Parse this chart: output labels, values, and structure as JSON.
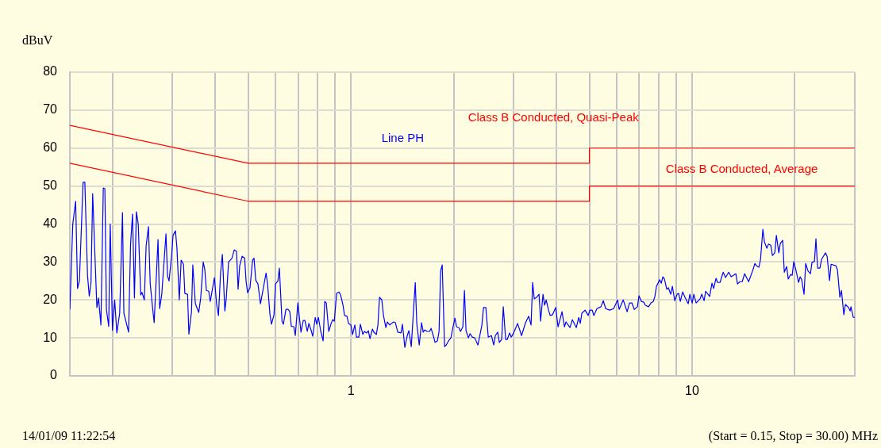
{
  "chart_data": {
    "type": "line",
    "ylabel": "dBuV",
    "annotations": [
      "14/01/09 11:22:54",
      "(Start = 0.15, Stop = 30.00) MHz"
    ],
    "log": "x",
    "grid": true,
    "legend": false,
    "marker": "none",
    "line_style": "solid",
    "xlim": [
      0.15,
      30
    ],
    "xticks": [
      {
        "value": 0.2,
        "label": null
      },
      {
        "value": 0.3,
        "label": null
      },
      {
        "value": 0.4,
        "label": null
      },
      {
        "value": 0.5,
        "label": null
      },
      {
        "value": 0.6,
        "label": null
      },
      {
        "value": 0.7,
        "label": null
      },
      {
        "value": 0.8,
        "label": null
      },
      {
        "value": 0.9,
        "label": null
      },
      1,
      {
        "value": 2,
        "label": null
      },
      {
        "value": 3,
        "label": null
      },
      {
        "value": 4,
        "label": null
      },
      {
        "value": 5,
        "label": null
      },
      {
        "value": 6,
        "label": null
      },
      {
        "value": 7,
        "label": null
      },
      {
        "value": 8,
        "label": null
      },
      {
        "value": 9,
        "label": null
      },
      10,
      {
        "value": 20,
        "label": null
      },
      {
        "value": 30,
        "label": null
      }
    ],
    "ylim": [
      0,
      80
    ],
    "yticks": [
      0,
      10,
      20,
      30,
      40,
      50,
      60,
      70,
      80
    ],
    "series": [
      {
        "name": "Line PH",
        "color": "#0000ff",
        "x": [
          0.15,
          0.153,
          0.156,
          0.158,
          0.16,
          0.164,
          0.166,
          0.169,
          0.171,
          0.173,
          0.175,
          0.18,
          0.182,
          0.185,
          0.188,
          0.19,
          0.192,
          0.195,
          0.197,
          0.2,
          0.203,
          0.206,
          0.21,
          0.214,
          0.216,
          0.223,
          0.226,
          0.229,
          0.232,
          0.235,
          0.238,
          0.242,
          0.244,
          0.248,
          0.251,
          0.255,
          0.258,
          0.262,
          0.265,
          0.272,
          0.275,
          0.279,
          0.287,
          0.29,
          0.293,
          0.298,
          0.301,
          0.306,
          0.309,
          0.314,
          0.318,
          0.323,
          0.326,
          0.332,
          0.335,
          0.341,
          0.344,
          0.35,
          0.358,
          0.363,
          0.369,
          0.373,
          0.377,
          0.383,
          0.387,
          0.398,
          0.404,
          0.409,
          0.415,
          0.42,
          0.427,
          0.431,
          0.438,
          0.448,
          0.455,
          0.462,
          0.467,
          0.472,
          0.48,
          0.488,
          0.493,
          0.498,
          0.506,
          0.515,
          0.52,
          0.526,
          0.534,
          0.543,
          0.549,
          0.564,
          0.57,
          0.579,
          0.585,
          0.595,
          0.601,
          0.611,
          0.617,
          0.628,
          0.634,
          0.645,
          0.655,
          0.662,
          0.669,
          0.68,
          0.687,
          0.699,
          0.714,
          0.725,
          0.733,
          0.745,
          0.753,
          0.765,
          0.773,
          0.786,
          0.794,
          0.803,
          0.816,
          0.829,
          0.838,
          0.847,
          0.861,
          0.875,
          0.884,
          0.894,
          0.908,
          0.923,
          0.933,
          0.948,
          0.958,
          0.974,
          0.984,
          1.0,
          1.011,
          1.027,
          1.038,
          1.055,
          1.066,
          1.084,
          1.095,
          1.113,
          1.125,
          1.137,
          1.156,
          1.168,
          1.187,
          1.2,
          1.213,
          1.232,
          1.246,
          1.266,
          1.279,
          1.3,
          1.314,
          1.335,
          1.35,
          1.372,
          1.402,
          1.416,
          1.439,
          1.463,
          1.479,
          1.503,
          1.544,
          1.56,
          1.586,
          1.611,
          1.629,
          1.646,
          1.673,
          1.7,
          1.718,
          1.746,
          1.765,
          1.793,
          1.813,
          1.832,
          1.852,
          1.882,
          1.902,
          1.933,
          1.964,
          1.986,
          2.018,
          2.04,
          2.073,
          2.095,
          2.129,
          2.152,
          2.175,
          2.21,
          2.234,
          2.27,
          2.307,
          2.357,
          2.421,
          2.447,
          2.486,
          2.527,
          2.581,
          2.623,
          2.651,
          2.694,
          2.723,
          2.767,
          2.797,
          2.842,
          2.873,
          2.919,
          2.951,
          2.999,
          3.08,
          3.164,
          3.25,
          3.32,
          3.374,
          3.41,
          3.447,
          3.503,
          3.56,
          3.598,
          3.657,
          3.696,
          3.736,
          3.796,
          3.837,
          3.899,
          3.984,
          4.048,
          4.158,
          4.226,
          4.271,
          4.387,
          4.458,
          4.579,
          4.653,
          4.703,
          4.754,
          4.857,
          4.962,
          5.015,
          5.096,
          5.152,
          5.263,
          5.406,
          5.494,
          5.583,
          5.735,
          5.89,
          6.051,
          6.116,
          6.282,
          6.452,
          6.557,
          6.663,
          6.77,
          6.917,
          6.991,
          7.104,
          7.219,
          7.297,
          7.455,
          7.576,
          7.699,
          7.782,
          7.866,
          8.038,
          8.125,
          8.212,
          8.299,
          8.433,
          8.524,
          8.661,
          8.755,
          8.898,
          9.042,
          9.14,
          9.237,
          9.387,
          9.539,
          9.746,
          9.851,
          10.01,
          10.12,
          10.28,
          10.56,
          10.68,
          10.85,
          10.96,
          11.26,
          11.44,
          11.57,
          11.76,
          11.88,
          12.08,
          12.34,
          12.54,
          12.81,
          13.02,
          13.44,
          13.59,
          13.81,
          14.03,
          14.26,
          14.65,
          15.04,
          15.29,
          15.45,
          15.7,
          15.87,
          16.13,
          16.3,
          16.57,
          16.75,
          17.02,
          17.2,
          17.48,
          17.67,
          17.96,
          18.15,
          18.44,
          18.64,
          18.94,
          19.14,
          19.45,
          19.66,
          19.87,
          20.19,
          20.52,
          20.74,
          20.96,
          21.3,
          21.53,
          21.88,
          22.24,
          22.47,
          22.84,
          23.08,
          23.34,
          23.71,
          23.97,
          24.62,
          24.89,
          25.29,
          25.56,
          26.4,
          26.68,
          27.12,
          27.41,
          27.86,
          28.15,
          28.76,
          29.07,
          29.23,
          29.7,
          30
        ],
        "values": [
          17.5,
          40,
          46,
          23,
          25,
          51,
          51,
          26.5,
          21,
          24.5,
          48,
          18,
          20.5,
          13.4,
          49.5,
          49.3,
          17.5,
          13,
          40,
          12,
          20,
          11.3,
          16.5,
          43,
          16.5,
          11.5,
          34.7,
          42.6,
          20.5,
          43.2,
          40,
          21.3,
          22,
          20,
          34.2,
          39.3,
          24.4,
          18.2,
          14,
          35.9,
          17.7,
          21.5,
          37.4,
          26.3,
          25,
          31.5,
          37,
          38.2,
          33.8,
          20,
          30.5,
          29.4,
          21.7,
          21.5,
          11,
          17,
          29.2,
          19,
          16.7,
          20.7,
          30,
          28,
          22.5,
          22.3,
          19.6,
          25.9,
          18.8,
          15.9,
          27.3,
          32,
          17.1,
          20.3,
          30,
          31,
          33.2,
          32.8,
          22.8,
          29,
          31.5,
          31,
          24.8,
          21.9,
          23.2,
          30.5,
          31,
          25.2,
          24.2,
          19,
          21.3,
          27.1,
          24,
          16.1,
          13.6,
          16.1,
          24.2,
          25,
          28.4,
          14.4,
          13.6,
          17.5,
          17.5,
          16.9,
          13,
          13,
          10.6,
          19.2,
          11.5,
          14.6,
          14.6,
          11.7,
          13.8,
          11.9,
          10.4,
          15.4,
          13.6,
          15.4,
          11.7,
          9.2,
          19.6,
          19.2,
          11.7,
          13.8,
          14.8,
          14.4,
          21.7,
          22.1,
          21.3,
          18.6,
          15.9,
          15.7,
          13.8,
          13.4,
          10.9,
          13.4,
          10.2,
          10.2,
          13.6,
          10.9,
          11.7,
          11.3,
          11.9,
          9.8,
          12.3,
          11.5,
          10.9,
          13.4,
          20.7,
          20,
          15.9,
          12.7,
          14.2,
          13.4,
          13.8,
          14.2,
          14,
          11.5,
          11.3,
          13.6,
          7.5,
          10.6,
          11.9,
          7.7,
          24.6,
          13.8,
          8.1,
          14,
          11.5,
          12.1,
          11.7,
          11.7,
          12.5,
          10.4,
          8.8,
          9.2,
          11.7,
          27.6,
          29.2,
          7.7,
          8.1,
          9.2,
          10,
          12.3,
          15.2,
          12.9,
          12.7,
          11.7,
          12.9,
          22.5,
          11.9,
          10,
          11.1,
          10.2,
          10,
          8.1,
          13.4,
          18,
          18,
          10.2,
          10.6,
          8.1,
          10.6,
          11.5,
          8.8,
          9.6,
          18.2,
          9.6,
          9.6,
          11.3,
          10.2,
          11.3,
          13.8,
          10.6,
          14,
          15.7,
          13.4,
          24.6,
          20.3,
          20.7,
          21.5,
          14.4,
          21.5,
          18.6,
          20,
          17.3,
          15.9,
          16.1,
          18,
          12.9,
          16.9,
          12.9,
          14.2,
          12.7,
          14.8,
          12.7,
          15.4,
          13.8,
          16.5,
          17.3,
          15.9,
          17.3,
          17.3,
          15.9,
          17.7,
          18.2,
          19.8,
          17.7,
          17.3,
          17.7,
          20,
          17.5,
          20,
          16.9,
          19.2,
          19.2,
          17.5,
          18.2,
          21.1,
          19.6,
          19.4,
          18.6,
          18.2,
          19.2,
          19.6,
          20.9,
          23.6,
          25.3,
          24.4,
          26.1,
          25.5,
          22.8,
          23.2,
          21.5,
          23.6,
          19.8,
          21.5,
          21.7,
          19.6,
          22.1,
          20.7,
          19,
          21.5,
          19.2,
          21.5,
          19.2,
          20.3,
          21.5,
          19.8,
          22.3,
          20.9,
          24.4,
          23,
          25.7,
          24.6,
          24.6,
          27.3,
          25.9,
          27.3,
          26.1,
          26.9,
          24.2,
          24.8,
          24.8,
          26.9,
          24.8,
          27.6,
          29.6,
          29,
          28.6,
          30.5,
          38.6,
          35.3,
          33.6,
          34.7,
          34.4,
          31.7,
          32.4,
          37,
          32.4,
          34.9,
          35.7,
          27.3,
          28.8,
          25.5,
          26.7,
          26.5,
          30.1,
          27.6,
          24.6,
          26.1,
          25.3,
          21.5,
          29.6,
          27.6,
          26.9,
          29.9,
          30.1,
          36.1,
          28.4,
          28.4,
          30.7,
          32.4,
          31.5,
          25.1,
          29.4,
          29,
          28,
          20.7,
          22.5,
          16.1,
          18.8,
          18,
          17.1,
          18.2,
          15.4,
          15.4
        ]
      },
      {
        "name": "Class B Conducted, Quasi-Peak",
        "color": "#ff0000",
        "x": [
          0.15,
          0.5,
          5,
          5,
          30
        ],
        "values": [
          66,
          56,
          56,
          60,
          60
        ]
      },
      {
        "name": "Class B Conducted, Average",
        "color": "#ff0000",
        "x": [
          0.15,
          0.5,
          5,
          5,
          30
        ],
        "values": [
          56,
          46,
          46,
          50,
          50
        ]
      }
    ]
  }
}
